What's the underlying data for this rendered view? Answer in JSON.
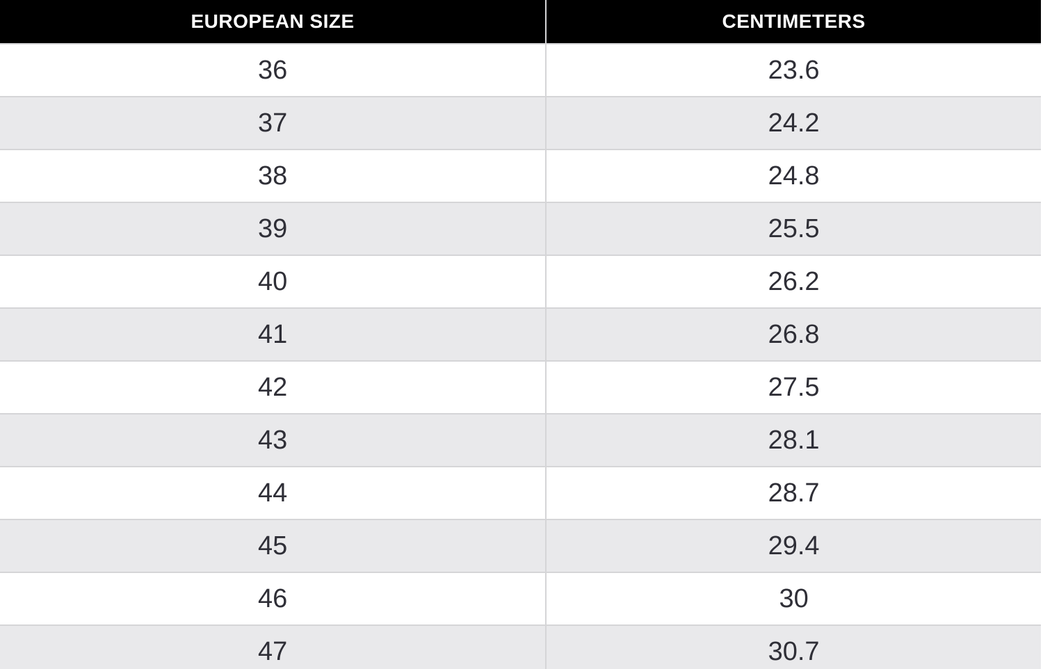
{
  "page": {
    "background_color": "#ffffff"
  },
  "table": {
    "title_semantic": "european-size-to-centimeters-conversion",
    "columns": [
      "EUROPEAN SIZE",
      "CENTIMETERS"
    ],
    "rows": [
      [
        "36",
        "23.6"
      ],
      [
        "37",
        "24.2"
      ],
      [
        "38",
        "24.8"
      ],
      [
        "39",
        "25.5"
      ],
      [
        "40",
        "26.2"
      ],
      [
        "41",
        "26.8"
      ],
      [
        "42",
        "27.5"
      ],
      [
        "43",
        "28.1"
      ],
      [
        "44",
        "28.7"
      ],
      [
        "45",
        "29.4"
      ],
      [
        "46",
        "30"
      ],
      [
        "47",
        "30.7"
      ]
    ],
    "colors": {
      "header_bg": "#000000",
      "header_text": "#ffffff",
      "row_bg": "#ffffff",
      "row_alt_bg": "#e9e9eb",
      "border": "#d5d5d7",
      "cell_text": "#2f2f37"
    }
  },
  "chart_data": {
    "type": "table",
    "title": "",
    "columns": [
      "EUROPEAN SIZE",
      "CENTIMETERS"
    ],
    "rows": [
      [
        36,
        23.6
      ],
      [
        37,
        24.2
      ],
      [
        38,
        24.8
      ],
      [
        39,
        25.5
      ],
      [
        40,
        26.2
      ],
      [
        41,
        26.8
      ],
      [
        42,
        27.5
      ],
      [
        43,
        28.1
      ],
      [
        44,
        28.7
      ],
      [
        45,
        29.4
      ],
      [
        46,
        30
      ],
      [
        47,
        30.7
      ]
    ],
    "layout": {
      "header_style": "black-bar-white-bold-uppercase",
      "zebra_striping": true,
      "column_split_fraction": 0.524,
      "last_row_clipped_by_viewport": true
    }
  }
}
